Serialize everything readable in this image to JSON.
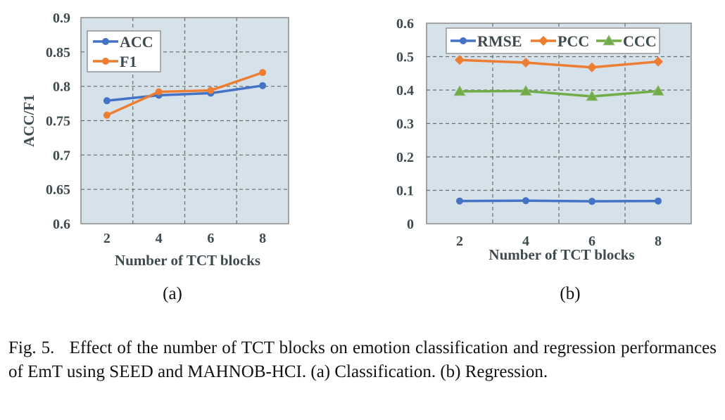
{
  "chart_data": [
    {
      "type": "line",
      "panel_label": "(a)",
      "title": "",
      "xlabel": "Number of TCT blocks",
      "ylabel": "ACC/F1",
      "categories": [
        "2",
        "4",
        "6",
        "8"
      ],
      "yticks": [
        "0.6",
        "0.65",
        "0.7",
        "0.75",
        "0.8",
        "0.85",
        "0.9"
      ],
      "ylim": [
        0.6,
        0.9
      ],
      "grid": true,
      "legend_position": "top-left",
      "series": [
        {
          "name": "ACC",
          "color": "#4472c4",
          "marker": "circle",
          "values": [
            0.779,
            0.787,
            0.79,
            0.801
          ]
        },
        {
          "name": "F1",
          "color": "#ed7d31",
          "marker": "circle",
          "values": [
            0.758,
            0.792,
            0.794,
            0.82
          ]
        }
      ]
    },
    {
      "type": "line",
      "panel_label": "(b)",
      "title": "",
      "xlabel": "Number of TCT blocks",
      "ylabel": "",
      "categories": [
        "2",
        "4",
        "6",
        "8"
      ],
      "yticks": [
        "0",
        "0.1",
        "0.2",
        "0.3",
        "0.4",
        "0.5",
        "0.6"
      ],
      "ylim": [
        0,
        0.6
      ],
      "grid": true,
      "legend_position": "top",
      "series": [
        {
          "name": "RMSE",
          "color": "#4472c4",
          "marker": "circle",
          "values": [
            0.068,
            0.069,
            0.067,
            0.068
          ]
        },
        {
          "name": "PCC",
          "color": "#ed7d31",
          "marker": "diamond",
          "values": [
            0.49,
            0.482,
            0.468,
            0.485
          ]
        },
        {
          "name": "CCC",
          "color": "#70ad47",
          "marker": "triangle",
          "values": [
            0.396,
            0.397,
            0.381,
            0.397
          ]
        }
      ]
    }
  ],
  "caption": {
    "label": "Fig. 5.",
    "text": "Effect of the number of TCT blocks on emotion classification and regression performances of EmT using SEED and MAHNOB-HCI. (a) Classification. (b) Regression."
  },
  "colors": {
    "plot_bg": "#d6e2ea",
    "grid": "#6b6b6b",
    "axis": "#8a8a8a"
  }
}
